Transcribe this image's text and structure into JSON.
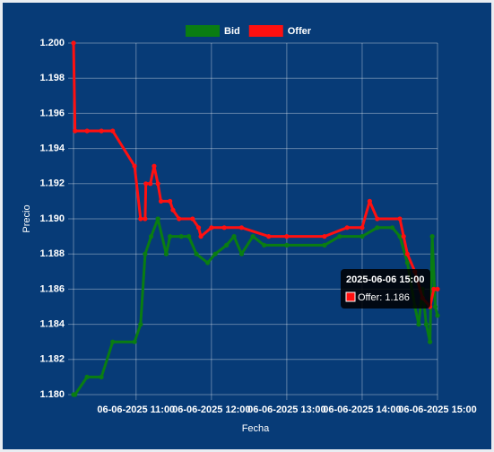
{
  "chart_data": {
    "type": "line",
    "y_label": "Precio",
    "x_label": "Fecha",
    "xlim": [
      10.17,
      15
    ],
    "xticks": [
      {
        "value": 11,
        "label": "06-06-2025 11:00"
      },
      {
        "value": 12,
        "label": "06-06-2025 12:00"
      },
      {
        "value": 13,
        "label": "06-06-2025 13:00"
      },
      {
        "value": 14,
        "label": "06-06-2025 14:00"
      },
      {
        "value": 15,
        "label": "06-06-2025 15:00"
      }
    ],
    "ylim": [
      1.18,
      1.2
    ],
    "yticks": [
      {
        "value": 1.18,
        "label": "1.180"
      },
      1.182,
      1.184,
      1.186,
      1.188,
      {
        "value": 1.19,
        "label": "1.190"
      },
      1.192,
      1.194,
      1.196,
      1.198,
      {
        "value": 1.2,
        "label": "1.200"
      }
    ],
    "grid": true,
    "legend": "top",
    "series": [
      {
        "name": "Bid",
        "color": "#0a7d12",
        "x": [
          10.17,
          10.19,
          10.35,
          10.54,
          10.69,
          10.98,
          11.06,
          11.12,
          11.2,
          11.29,
          11.4,
          11.45,
          11.6,
          11.7,
          11.8,
          11.95,
          12.05,
          12.2,
          12.3,
          12.4,
          12.55,
          12.7,
          13.0,
          13.5,
          13.7,
          14.0,
          14.2,
          14.4,
          14.5,
          14.6,
          14.7,
          14.75,
          14.8,
          14.85,
          14.9,
          14.93,
          14.97,
          15.0
        ],
        "values": [
          1.18,
          1.18,
          1.181,
          1.181,
          1.183,
          1.183,
          1.184,
          1.188,
          1.189,
          1.19,
          1.188,
          1.189,
          1.189,
          1.189,
          1.188,
          1.1875,
          1.188,
          1.1885,
          1.189,
          1.188,
          1.189,
          1.1885,
          1.1885,
          1.1885,
          1.189,
          1.189,
          1.1895,
          1.1895,
          1.189,
          1.1875,
          1.185,
          1.184,
          1.186,
          1.184,
          1.183,
          1.189,
          1.185,
          1.1845
        ]
      },
      {
        "name": "Offer",
        "color": "#ff1010",
        "x": [
          10.17,
          10.19,
          10.35,
          10.54,
          10.69,
          10.98,
          11.06,
          11.12,
          11.13,
          11.19,
          11.24,
          11.29,
          11.33,
          11.45,
          11.49,
          11.57,
          11.75,
          11.83,
          11.86,
          12.0,
          12.17,
          12.4,
          12.76,
          13.0,
          13.5,
          13.8,
          14.0,
          14.1,
          14.2,
          14.5,
          14.55,
          14.6,
          14.7,
          14.8,
          14.9,
          14.95,
          15.0
        ],
        "values": [
          1.2,
          1.195,
          1.195,
          1.195,
          1.195,
          1.193,
          1.19,
          1.19,
          1.192,
          1.192,
          1.193,
          1.192,
          1.191,
          1.191,
          1.1905,
          1.19,
          1.19,
          1.1895,
          1.189,
          1.1895,
          1.1895,
          1.1895,
          1.189,
          1.189,
          1.189,
          1.1895,
          1.1895,
          1.191,
          1.19,
          1.19,
          1.189,
          1.188,
          1.187,
          1.1855,
          1.185,
          1.186,
          1.186
        ]
      }
    ],
    "tooltip": {
      "title": "2025-06-06 15:00",
      "label": "Offer: 1.186"
    }
  }
}
